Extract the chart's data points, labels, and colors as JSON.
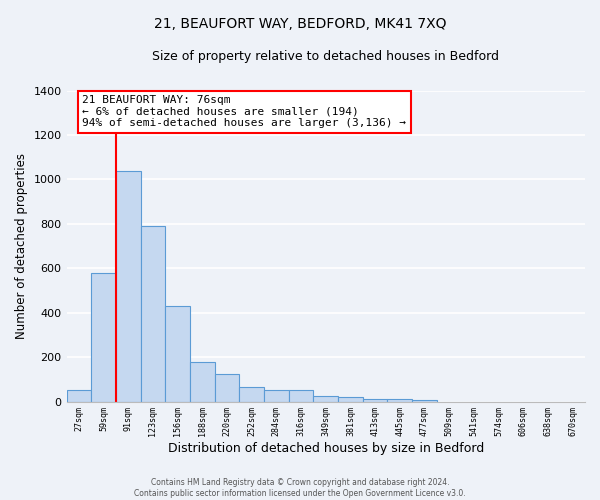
{
  "title": "21, BEAUFORT WAY, BEDFORD, MK41 7XQ",
  "subtitle": "Size of property relative to detached houses in Bedford",
  "xlabel": "Distribution of detached houses by size in Bedford",
  "ylabel": "Number of detached properties",
  "bar_labels": [
    "27sqm",
    "59sqm",
    "91sqm",
    "123sqm",
    "156sqm",
    "188sqm",
    "220sqm",
    "252sqm",
    "284sqm",
    "316sqm",
    "349sqm",
    "381sqm",
    "413sqm",
    "445sqm",
    "477sqm",
    "509sqm",
    "541sqm",
    "574sqm",
    "606sqm",
    "638sqm",
    "670sqm"
  ],
  "bar_values": [
    50,
    580,
    1040,
    790,
    430,
    180,
    125,
    65,
    50,
    50,
    25,
    20,
    10,
    10,
    5,
    0,
    0,
    0,
    0,
    0,
    0
  ],
  "bar_color": "#c5d8f0",
  "bar_edge_color": "#5b9bd5",
  "ylim": [
    0,
    1400
  ],
  "yticks": [
    0,
    200,
    400,
    600,
    800,
    1000,
    1200,
    1400
  ],
  "red_line_x": 1.5,
  "annotation_title": "21 BEAUFORT WAY: 76sqm",
  "annotation_line1": "← 6% of detached houses are smaller (194)",
  "annotation_line2": "94% of semi-detached houses are larger (3,136) →",
  "footer1": "Contains HM Land Registry data © Crown copyright and database right 2024.",
  "footer2": "Contains public sector information licensed under the Open Government Licence v3.0.",
  "bg_color": "#eef2f8",
  "plot_bg_color": "#eef2f8",
  "grid_color": "#ffffff",
  "title_fontsize": 10,
  "subtitle_fontsize": 9
}
